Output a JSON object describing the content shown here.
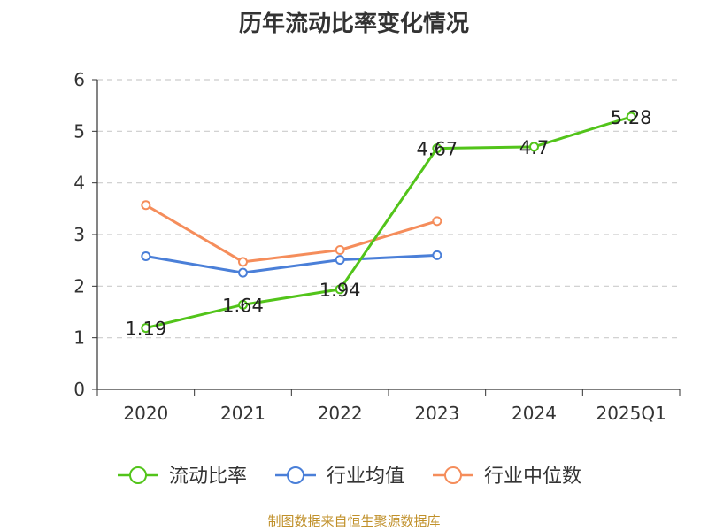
{
  "title": "历年流动比率变化情况",
  "source": "制图数据来自恒生聚源数据库",
  "chart_data": {
    "type": "line",
    "title": "历年流动比率变化情况",
    "categories": [
      "2020",
      "2021",
      "2022",
      "2023",
      "2024",
      "2025Q1"
    ],
    "ylim": [
      0,
      6
    ],
    "yticks": [
      0,
      1,
      2,
      3,
      4,
      5,
      6
    ],
    "grid": true,
    "legend_position": "bottom",
    "series": [
      {
        "name": "流动比率",
        "color": "#52c41a",
        "values": [
          1.19,
          1.64,
          1.94,
          4.67,
          4.7,
          5.28
        ],
        "labels": [
          "1.19",
          "1.64",
          "1.94",
          "4.67",
          "4.7",
          "5.28"
        ]
      },
      {
        "name": "行业均值",
        "color": "#4a7fd8",
        "values": [
          2.58,
          2.26,
          2.51,
          2.6,
          null,
          null
        ]
      },
      {
        "name": "行业中位数",
        "color": "#f58d5b",
        "values": [
          3.57,
          2.47,
          2.7,
          3.26,
          null,
          null
        ]
      }
    ]
  }
}
